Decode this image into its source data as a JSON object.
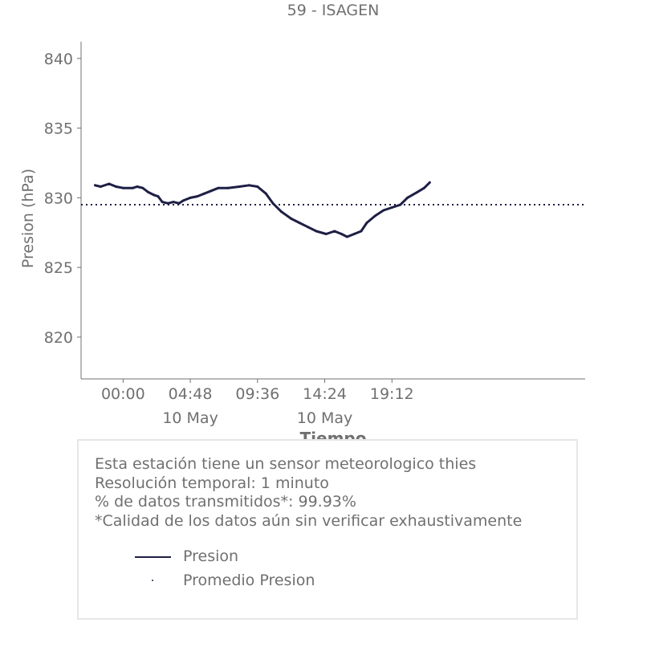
{
  "chart_data": {
    "type": "line",
    "title": "59 - ISAGEN",
    "xlabel": "Tiempo",
    "ylabel": "Presion (hPa)",
    "ylim": [
      817,
      841.2
    ],
    "xlim_hours": [
      -3,
      33
    ],
    "x_ticks": [
      {
        "hour": 0,
        "label": "00:00",
        "sublabel": ""
      },
      {
        "hour": 4.8,
        "label": "04:48",
        "sublabel": "10 May"
      },
      {
        "hour": 9.6,
        "label": "09:36",
        "sublabel": ""
      },
      {
        "hour": 14.4,
        "label": "14:24",
        "sublabel": "10 May"
      },
      {
        "hour": 19.2,
        "label": "19:12",
        "sublabel": ""
      }
    ],
    "y_ticks": [
      820,
      825,
      830,
      835,
      840
    ],
    "grid": false,
    "series": [
      {
        "name": "Presion",
        "color": "#1e1f45",
        "style": "solid",
        "points": [
          [
            -2,
            830.9
          ],
          [
            -1.6,
            830.8
          ],
          [
            -1.0,
            831.0
          ],
          [
            -0.5,
            830.8
          ],
          [
            0,
            830.7
          ],
          [
            0.7,
            830.7
          ],
          [
            1.0,
            830.8
          ],
          [
            1.4,
            830.7
          ],
          [
            1.8,
            830.4
          ],
          [
            2.2,
            830.2
          ],
          [
            2.5,
            830.1
          ],
          [
            2.8,
            829.7
          ],
          [
            3.2,
            829.6
          ],
          [
            3.6,
            829.7
          ],
          [
            4.0,
            829.6
          ],
          [
            4.3,
            829.8
          ],
          [
            4.8,
            830.0
          ],
          [
            5.3,
            830.1
          ],
          [
            5.8,
            830.3
          ],
          [
            6.3,
            830.5
          ],
          [
            6.8,
            830.7
          ],
          [
            7.5,
            830.7
          ],
          [
            8.3,
            830.8
          ],
          [
            9.0,
            830.9
          ],
          [
            9.6,
            830.8
          ],
          [
            10.2,
            830.3
          ],
          [
            10.7,
            829.6
          ],
          [
            11.3,
            829.0
          ],
          [
            12.0,
            828.5
          ],
          [
            12.6,
            828.2
          ],
          [
            13.2,
            827.9
          ],
          [
            13.8,
            827.6
          ],
          [
            14.5,
            827.4
          ],
          [
            15.1,
            827.6
          ],
          [
            15.6,
            827.4
          ],
          [
            16.0,
            827.2
          ],
          [
            16.5,
            827.4
          ],
          [
            17.0,
            827.6
          ],
          [
            17.4,
            828.2
          ],
          [
            18.0,
            828.7
          ],
          [
            18.6,
            829.1
          ],
          [
            19.2,
            829.3
          ],
          [
            19.8,
            829.5
          ],
          [
            20.3,
            830.0
          ],
          [
            21.0,
            830.4
          ],
          [
            21.5,
            830.7
          ],
          [
            21.9,
            831.1
          ]
        ]
      },
      {
        "name": "Promedio Presion",
        "color": "#1e1f45",
        "style": "dotted",
        "value": 829.5
      }
    ]
  },
  "info": {
    "line1": "Esta estación tiene un sensor meteorologico thies",
    "line2": "Resolución temporal: 1 minuto",
    "line3": "% de datos transmitidos*: 99.93%",
    "line4": "*Calidad de los datos aún sin verificar exhaustivamente"
  }
}
